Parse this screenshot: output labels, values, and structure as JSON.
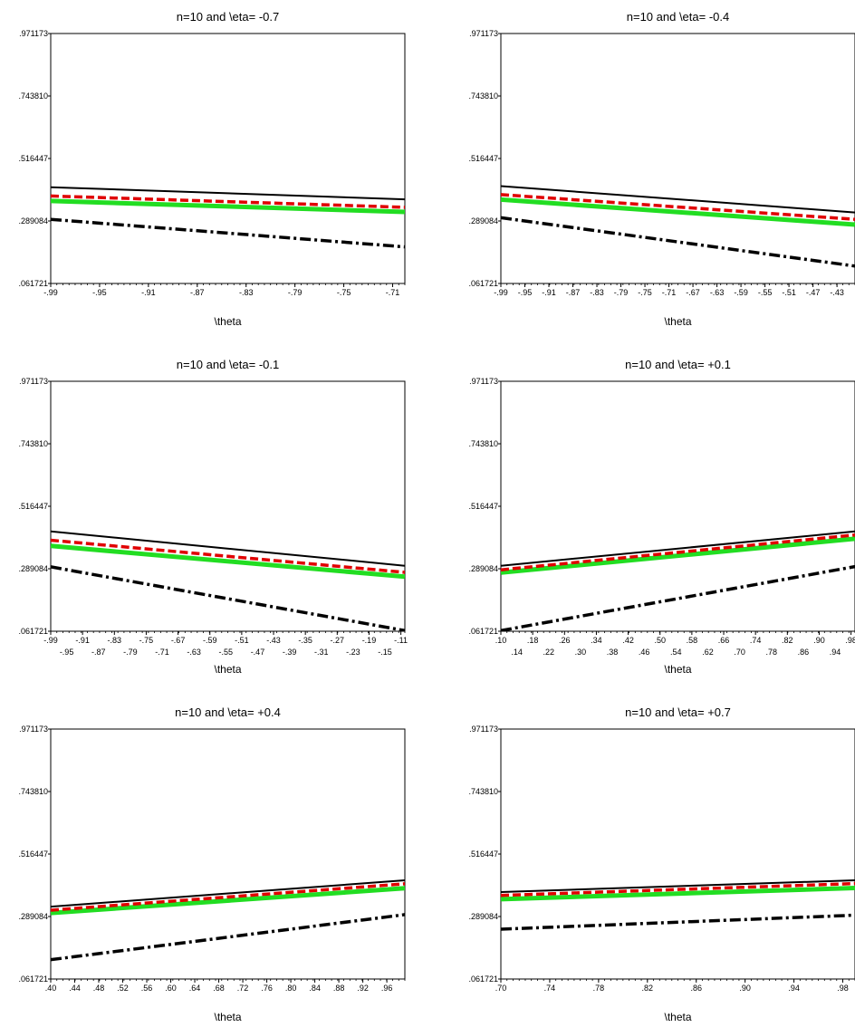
{
  "legend": [],
  "series_styles": [
    {
      "color": "#000000",
      "style": "solid"
    },
    {
      "color": "#e00000",
      "style": "dashed"
    },
    {
      "color": "#22dd22",
      "style": "solid-thick"
    },
    {
      "color": "#000000",
      "style": "dash-dot"
    }
  ],
  "chart_data": [
    {
      "type": "line",
      "title": "n=10 and \\eta= -0.7",
      "xlabel": "\\theta",
      "ylabel": "",
      "xlim": [
        -0.99,
        -0.7
      ],
      "ylim": [
        0.061721,
        0.971173
      ],
      "yticks": [
        ".061721",
        ".289084",
        ".516447",
        ".743810",
        ".971173"
      ],
      "yvals": [
        0.061721,
        0.289084,
        0.516447,
        0.74381,
        0.971173
      ],
      "xticks_row1": [
        "-.99",
        "-.95",
        "-.91",
        "-.87",
        "-.83",
        "-.79",
        "-.75",
        "-.71"
      ],
      "xticks_row1_vals": [
        -0.99,
        -0.95,
        -0.91,
        -0.87,
        -0.83,
        -0.79,
        -0.75,
        -0.71
      ],
      "xticks_row2": [],
      "xticks_row2_vals": [],
      "series": [
        {
          "x": [
            -0.99,
            -0.7
          ],
          "y": [
            0.412,
            0.368
          ]
        },
        {
          "x": [
            -0.99,
            -0.7
          ],
          "y": [
            0.38,
            0.339
          ]
        },
        {
          "x": [
            -0.99,
            -0.7
          ],
          "y": [
            0.362,
            0.322
          ]
        },
        {
          "x": [
            -0.99,
            -0.7
          ],
          "y": [
            0.295,
            0.195
          ]
        }
      ]
    },
    {
      "type": "line",
      "title": "n=10 and \\eta= -0.4",
      "xlabel": "\\theta",
      "ylabel": "",
      "xlim": [
        -0.99,
        -0.4
      ],
      "ylim": [
        0.061721,
        0.971173
      ],
      "yticks": [
        ".061721",
        ".289084",
        ".516447",
        ".743810",
        ".971173"
      ],
      "yvals": [
        0.061721,
        0.289084,
        0.516447,
        0.74381,
        0.971173
      ],
      "xticks_row1": [
        "-.99",
        "-.95",
        "-.91",
        "-.87",
        "-.83",
        "-.79",
        "-.75",
        "-.71",
        "-.67",
        "-.63",
        "-.59",
        "-.55",
        "-.51",
        "-.47",
        "-.43"
      ],
      "xticks_row1_vals": [
        -0.99,
        -0.95,
        -0.91,
        -0.87,
        -0.83,
        -0.79,
        -0.75,
        -0.71,
        -0.67,
        -0.63,
        -0.59,
        -0.55,
        -0.51,
        -0.47,
        -0.43
      ],
      "xticks_row2": [],
      "xticks_row2_vals": [],
      "series": [
        {
          "x": [
            -0.99,
            -0.4
          ],
          "y": [
            0.416,
            0.32
          ]
        },
        {
          "x": [
            -0.99,
            -0.4
          ],
          "y": [
            0.385,
            0.295
          ]
        },
        {
          "x": [
            -0.99,
            -0.4
          ],
          "y": [
            0.367,
            0.276
          ]
        },
        {
          "x": [
            -0.99,
            -0.4
          ],
          "y": [
            0.301,
            0.125
          ]
        }
      ]
    },
    {
      "type": "line",
      "title": "n=10 and \\eta= -0.1",
      "xlabel": "\\theta",
      "ylabel": "",
      "xlim": [
        -0.99,
        -0.1
      ],
      "ylim": [
        0.061721,
        0.971173
      ],
      "yticks": [
        ".061721",
        ".289084",
        ".516447",
        ".743810",
        ".971173"
      ],
      "yvals": [
        0.061721,
        0.289084,
        0.516447,
        0.74381,
        0.971173
      ],
      "xticks_row1": [
        "-.99",
        "-.91",
        "-.83",
        "-.75",
        "-.67",
        "-.59",
        "-.51",
        "-.43",
        "-.35",
        "-.27",
        "-.19",
        "-.11"
      ],
      "xticks_row1_vals": [
        -0.99,
        -0.91,
        -0.83,
        -0.75,
        -0.67,
        -0.59,
        -0.51,
        -0.43,
        -0.35,
        -0.27,
        -0.19,
        -0.11
      ],
      "xticks_row2": [
        "-.95",
        "-.87",
        "-.79",
        "-.71",
        "-.63",
        "-.55",
        "-.47",
        "-.39",
        "-.31",
        "-.23",
        "-.15"
      ],
      "xticks_row2_vals": [
        -0.95,
        -0.87,
        -0.79,
        -0.71,
        -0.63,
        -0.55,
        -0.47,
        -0.39,
        -0.31,
        -0.23,
        -0.15
      ],
      "series": [
        {
          "x": [
            -0.99,
            -0.1
          ],
          "y": [
            0.425,
            0.3
          ]
        },
        {
          "x": [
            -0.99,
            -0.1
          ],
          "y": [
            0.393,
            0.276
          ]
        },
        {
          "x": [
            -0.99,
            -0.1
          ],
          "y": [
            0.372,
            0.26
          ]
        },
        {
          "x": [
            -0.99,
            -0.1
          ],
          "y": [
            0.296,
            0.064
          ]
        }
      ]
    },
    {
      "type": "line",
      "title": "n=10 and \\eta= +0.1",
      "xlabel": "\\theta",
      "ylabel": "",
      "xlim": [
        0.1,
        0.99
      ],
      "ylim": [
        0.061721,
        0.971173
      ],
      "yticks": [
        ".061721",
        ".289084",
        ".516447",
        ".743810",
        ".971173"
      ],
      "yvals": [
        0.061721,
        0.289084,
        0.516447,
        0.74381,
        0.971173
      ],
      "xticks_row1": [
        ".10",
        ".18",
        ".26",
        ".34",
        ".42",
        ".50",
        ".58",
        ".66",
        ".74",
        ".82",
        ".90",
        ".98"
      ],
      "xticks_row1_vals": [
        0.1,
        0.18,
        0.26,
        0.34,
        0.42,
        0.5,
        0.58,
        0.66,
        0.74,
        0.82,
        0.9,
        0.98
      ],
      "xticks_row2": [
        ".14",
        ".22",
        ".30",
        ".38",
        ".46",
        ".54",
        ".62",
        ".70",
        ".78",
        ".86",
        ".94"
      ],
      "xticks_row2_vals": [
        0.14,
        0.22,
        0.3,
        0.38,
        0.46,
        0.54,
        0.62,
        0.7,
        0.78,
        0.86,
        0.94
      ],
      "series": [
        {
          "x": [
            0.1,
            0.99
          ],
          "y": [
            0.3,
            0.425
          ]
        },
        {
          "x": [
            0.1,
            0.99
          ],
          "y": [
            0.285,
            0.412
          ]
        },
        {
          "x": [
            0.1,
            0.99
          ],
          "y": [
            0.275,
            0.398
          ]
        },
        {
          "x": [
            0.1,
            0.99
          ],
          "y": [
            0.064,
            0.297
          ]
        }
      ]
    },
    {
      "type": "line",
      "title": "n=10 and \\eta= +0.4",
      "xlabel": "\\theta",
      "ylabel": "",
      "xlim": [
        0.4,
        0.99
      ],
      "ylim": [
        0.061721,
        0.971173
      ],
      "yticks": [
        ".061721",
        ".289084",
        ".516447",
        ".743810",
        ".971173"
      ],
      "yvals": [
        0.061721,
        0.289084,
        0.516447,
        0.74381,
        0.971173
      ],
      "xticks_row1": [
        ".40",
        ".44",
        ".48",
        ".52",
        ".56",
        ".60",
        ".64",
        ".68",
        ".72",
        ".76",
        ".80",
        ".84",
        ".88",
        ".92",
        ".96"
      ],
      "xticks_row1_vals": [
        0.4,
        0.44,
        0.48,
        0.52,
        0.56,
        0.6,
        0.64,
        0.68,
        0.72,
        0.76,
        0.8,
        0.84,
        0.88,
        0.92,
        0.96
      ],
      "xticks_row2": [],
      "xticks_row2_vals": [],
      "series": [
        {
          "x": [
            0.4,
            0.99
          ],
          "y": [
            0.325,
            0.421
          ]
        },
        {
          "x": [
            0.4,
            0.99
          ],
          "y": [
            0.312,
            0.408
          ]
        },
        {
          "x": [
            0.4,
            0.99
          ],
          "y": [
            0.302,
            0.392
          ]
        },
        {
          "x": [
            0.4,
            0.99
          ],
          "y": [
            0.132,
            0.296
          ]
        }
      ]
    },
    {
      "type": "line",
      "title": "n=10 and \\eta= +0.7",
      "xlabel": "\\theta",
      "ylabel": "",
      "xlim": [
        0.7,
        0.99
      ],
      "ylim": [
        0.061721,
        0.971173
      ],
      "yticks": [
        ".061721",
        ".289084",
        ".516447",
        ".743810",
        ".971173"
      ],
      "yvals": [
        0.061721,
        0.289084,
        0.516447,
        0.74381,
        0.971173
      ],
      "xticks_row1": [
        ".70",
        ".74",
        ".78",
        ".82",
        ".86",
        ".90",
        ".94",
        ".98"
      ],
      "xticks_row1_vals": [
        0.7,
        0.74,
        0.78,
        0.82,
        0.86,
        0.9,
        0.94,
        0.98
      ],
      "xticks_row2": [],
      "xticks_row2_vals": [],
      "series": [
        {
          "x": [
            0.7,
            0.99
          ],
          "y": [
            0.378,
            0.421
          ]
        },
        {
          "x": [
            0.7,
            0.99
          ],
          "y": [
            0.366,
            0.409
          ]
        },
        {
          "x": [
            0.7,
            0.99
          ],
          "y": [
            0.352,
            0.393
          ]
        },
        {
          "x": [
            0.7,
            0.99
          ],
          "y": [
            0.243,
            0.294
          ]
        }
      ]
    }
  ]
}
